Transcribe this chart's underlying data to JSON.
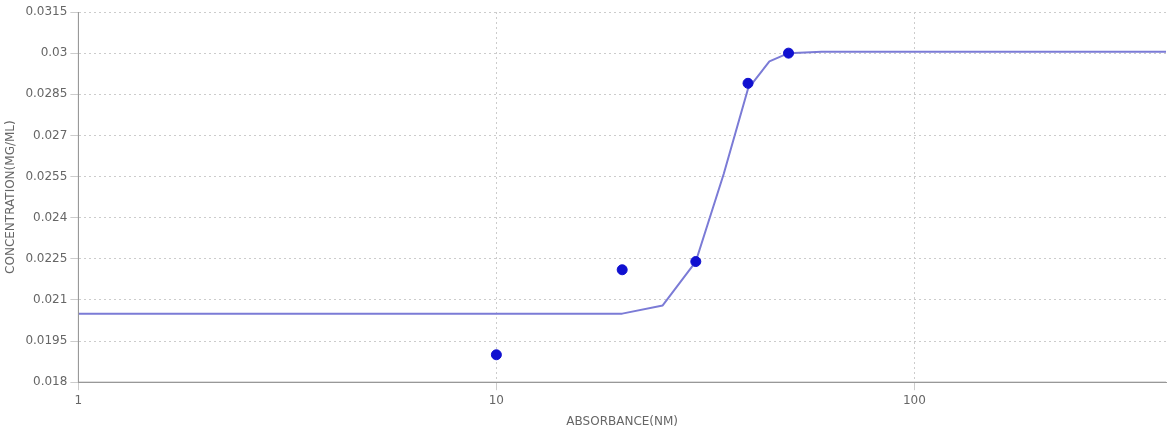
{
  "chart_data": {
    "type": "scatter",
    "xlabel": "ABSORBANCE(NM)",
    "ylabel": "CONCENTRATION(MG/ML)",
    "log": "x",
    "grid": true,
    "legend": false,
    "xlim": [
      1,
      400
    ],
    "xticks": [
      1,
      10,
      100
    ],
    "ylim": [
      0.018,
      0.0315
    ],
    "yticks": [
      0.018,
      0.0195,
      0.021,
      0.0225,
      0.024,
      0.0255,
      0.027,
      0.0285,
      0.03,
      0.0315
    ],
    "series": [
      {
        "type": "line",
        "color": "#7b7bd6",
        "marker": "none",
        "x": [
          1,
          20,
          25,
          30,
          35,
          40,
          45,
          50,
          60,
          400
        ],
        "values": [
          0.0205,
          0.0205,
          0.0208,
          0.0224,
          0.0256,
          0.0287,
          0.0297,
          0.03,
          0.03005,
          0.03005
        ]
      },
      {
        "type": "scatter",
        "color": "#1010d0",
        "marker": "circle",
        "x": [
          10,
          20,
          30,
          40,
          50
        ],
        "values": [
          0.019,
          0.0221,
          0.0224,
          0.0289,
          0.03
        ]
      }
    ]
  }
}
